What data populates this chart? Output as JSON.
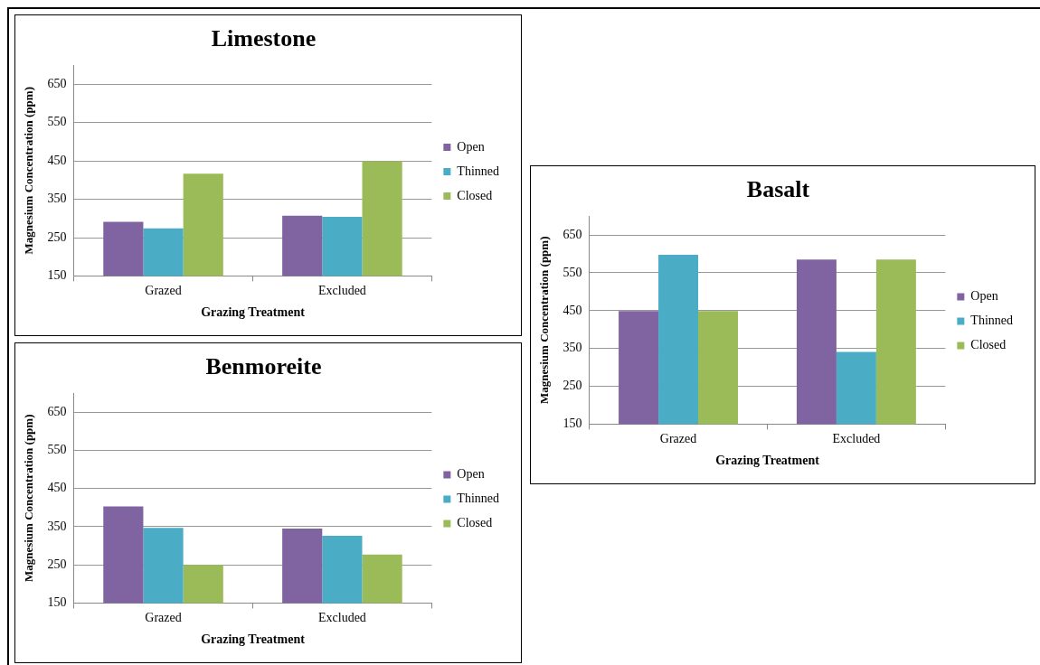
{
  "chart_data": [
    {
      "type": "bar",
      "title": "Limestone",
      "xlabel": "Grazing Treatment",
      "ylabel": "Magnesium Concentration (ppm)",
      "categories": [
        "Grazed",
        "Excluded"
      ],
      "series": [
        {
          "name": "Open",
          "color": "#8064a2",
          "values": [
            291,
            307
          ]
        },
        {
          "name": "Thinned",
          "color": "#4bacc6",
          "values": [
            274,
            304
          ]
        },
        {
          "name": "Closed",
          "color": "#9bbb59",
          "values": [
            417,
            449
          ]
        }
      ],
      "ylim": [
        150,
        700
      ],
      "yticks": [
        150,
        250,
        350,
        450,
        550,
        650
      ],
      "grid": "y",
      "legend": "right"
    },
    {
      "type": "bar",
      "title": "Basalt",
      "xlabel": "Grazing Treatment",
      "ylabel": "Magnesium Concentration (ppm)",
      "categories": [
        "Grazed",
        "Excluded"
      ],
      "series": [
        {
          "name": "Open",
          "color": "#8064a2",
          "values": [
            449,
            585
          ]
        },
        {
          "name": "Thinned",
          "color": "#4bacc6",
          "values": [
            598,
            341
          ]
        },
        {
          "name": "Closed",
          "color": "#9bbb59",
          "values": [
            449,
            585
          ]
        }
      ],
      "ylim": [
        150,
        700
      ],
      "yticks": [
        150,
        250,
        350,
        450,
        550,
        650
      ],
      "grid": "y",
      "legend": "right"
    },
    {
      "type": "bar",
      "title": "Benmoreite",
      "xlabel": "Grazing Treatment",
      "ylabel": "Magnesium Concentration (ppm)",
      "categories": [
        "Grazed",
        "Excluded"
      ],
      "series": [
        {
          "name": "Open",
          "color": "#8064a2",
          "values": [
            403,
            345
          ]
        },
        {
          "name": "Thinned",
          "color": "#4bacc6",
          "values": [
            347,
            326
          ]
        },
        {
          "name": "Closed",
          "color": "#9bbb59",
          "values": [
            250,
            277
          ]
        }
      ],
      "ylim": [
        150,
        700
      ],
      "yticks": [
        150,
        250,
        350,
        450,
        550,
        650
      ],
      "grid": "y",
      "legend": "right"
    }
  ]
}
